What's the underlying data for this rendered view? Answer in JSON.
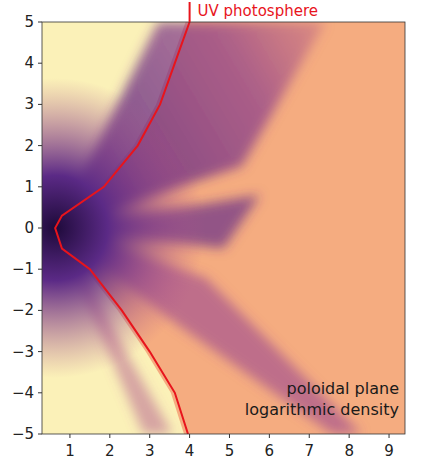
{
  "chart_data": {
    "type": "line",
    "annotations": [
      "poloidal plane",
      "logarithmic density"
    ],
    "xlim": [
      0.3,
      9.4
    ],
    "ylim": [
      -5,
      5
    ],
    "xticks": [
      1,
      2,
      3,
      4,
      5,
      6,
      7,
      8,
      9
    ],
    "yticks": [
      {
        "value": -5,
        "label": "−5"
      },
      {
        "value": -4,
        "label": "−4"
      },
      {
        "value": -3,
        "label": "−3"
      },
      {
        "value": -2,
        "label": "−2"
      },
      {
        "value": -1,
        "label": "−1"
      },
      0,
      1,
      2,
      3,
      4,
      5
    ],
    "grid": false,
    "series": [
      {
        "name": "UV photosphere",
        "color": "#e8141c",
        "x": [
          4.0,
          3.63,
          3.26,
          2.7,
          1.85,
          0.8,
          0.63,
          0.8,
          1.5,
          2.3,
          3.0,
          3.63,
          3.96
        ],
        "values": [
          5,
          4,
          3,
          2,
          1,
          0.3,
          0,
          -0.5,
          -1,
          -2,
          -3,
          -4,
          -5
        ]
      }
    ]
  }
}
